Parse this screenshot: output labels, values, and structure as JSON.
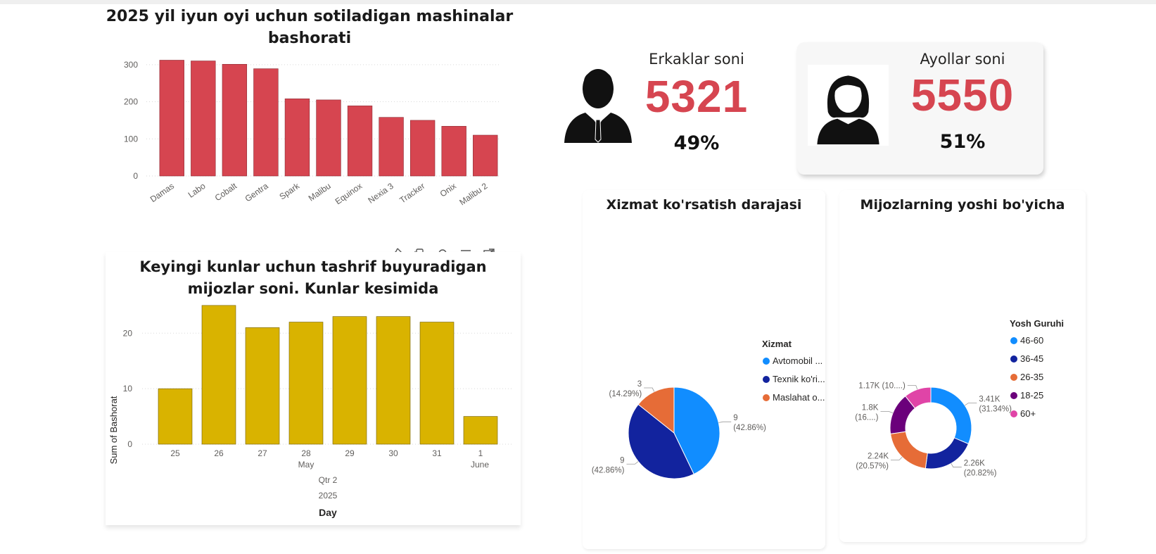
{
  "colors": {
    "bar_red": "#d64550",
    "bar_gold": "#d9b300",
    "kpi_red": "#d64550",
    "blue": "#118dff",
    "navy": "#12239e",
    "orange": "#e66c37",
    "purple": "#6b007b",
    "pink": "#e044a7"
  },
  "icons": [
    "pin-icon",
    "copy-icon",
    "bell-icon",
    "filter-icon",
    "focus-mode-icon",
    "more-options-icon",
    "man-avatar-icon",
    "woman-avatar-icon"
  ],
  "kpi_men": {
    "label": "Erkaklar soni",
    "value": "5321",
    "percent": "49%"
  },
  "kpi_women": {
    "label": "Ayollar soni",
    "value": "5550",
    "percent": "51%"
  },
  "chart_data": [
    {
      "type": "bar",
      "title": "2025 yil iyun oyi uchun sotiladigan mashinalar bashorati",
      "categories": [
        "Damas",
        "Labo",
        "Cobalt",
        "Gentra",
        "Spark",
        "Malibu",
        "Equinox",
        "Nexia 3",
        "Tracker",
        "Onix",
        "Malibu 2"
      ],
      "values": [
        312,
        310,
        301,
        289,
        208,
        205,
        189,
        158,
        150,
        134,
        110
      ],
      "yticks": [
        "0",
        "100",
        "200",
        "300"
      ],
      "ylim": [
        0,
        330
      ],
      "grid": true,
      "color": "#d64550"
    },
    {
      "type": "bar",
      "title": "Keyingi kunlar uchun tashrif buyuradigan mijozlar soni. Kunlar kesimida",
      "categories": [
        "25",
        "26",
        "27",
        "28",
        "29",
        "30",
        "31",
        "1"
      ],
      "values": [
        10,
        25,
        21,
        22,
        23,
        23,
        22,
        5
      ],
      "yticks": [
        "0",
        "10",
        "20"
      ],
      "ylim": [
        0,
        26
      ],
      "ylabel": "Sum of Bashorat",
      "xlabel": "Day",
      "month_labels": [
        "May",
        "June"
      ],
      "quarter_label": "Qtr 2",
      "year_label": "2025",
      "grid": true,
      "color": "#d9b300"
    },
    {
      "type": "pie",
      "title": "Xizmat ko'rsatish darajasi",
      "legend_title": "Xizmat",
      "legend": [
        "Avtomobil ...",
        "Texnik ko'ri...",
        "Maslahat o..."
      ],
      "values": [
        9,
        9,
        3
      ],
      "value_labels": [
        "9",
        "9",
        "3"
      ],
      "percent_labels": [
        "(42.86%)",
        "(42.86%)",
        "(14.29%)"
      ],
      "colors": [
        "#118dff",
        "#12239e",
        "#e66c37"
      ],
      "legend_position": "right"
    },
    {
      "type": "pie",
      "donut": true,
      "title": "Mijozlarning yoshi bo'yicha",
      "legend_title": "Yosh Guruhi",
      "legend": [
        "46-60",
        "36-45",
        "26-35",
        "18-25",
        "60+"
      ],
      "values": [
        3410,
        2260,
        2240,
        1800,
        1170
      ],
      "value_labels": [
        "3.41K",
        "2.26K",
        "2.24K",
        "1.8K",
        "1.17K (10....)"
      ],
      "percent_labels": [
        "(31.34%)",
        "(20.82%)",
        "(20.57%)",
        "(16....)",
        ""
      ],
      "colors": [
        "#118dff",
        "#12239e",
        "#e66c37",
        "#6b007b",
        "#e044a7"
      ],
      "legend_position": "right"
    }
  ]
}
